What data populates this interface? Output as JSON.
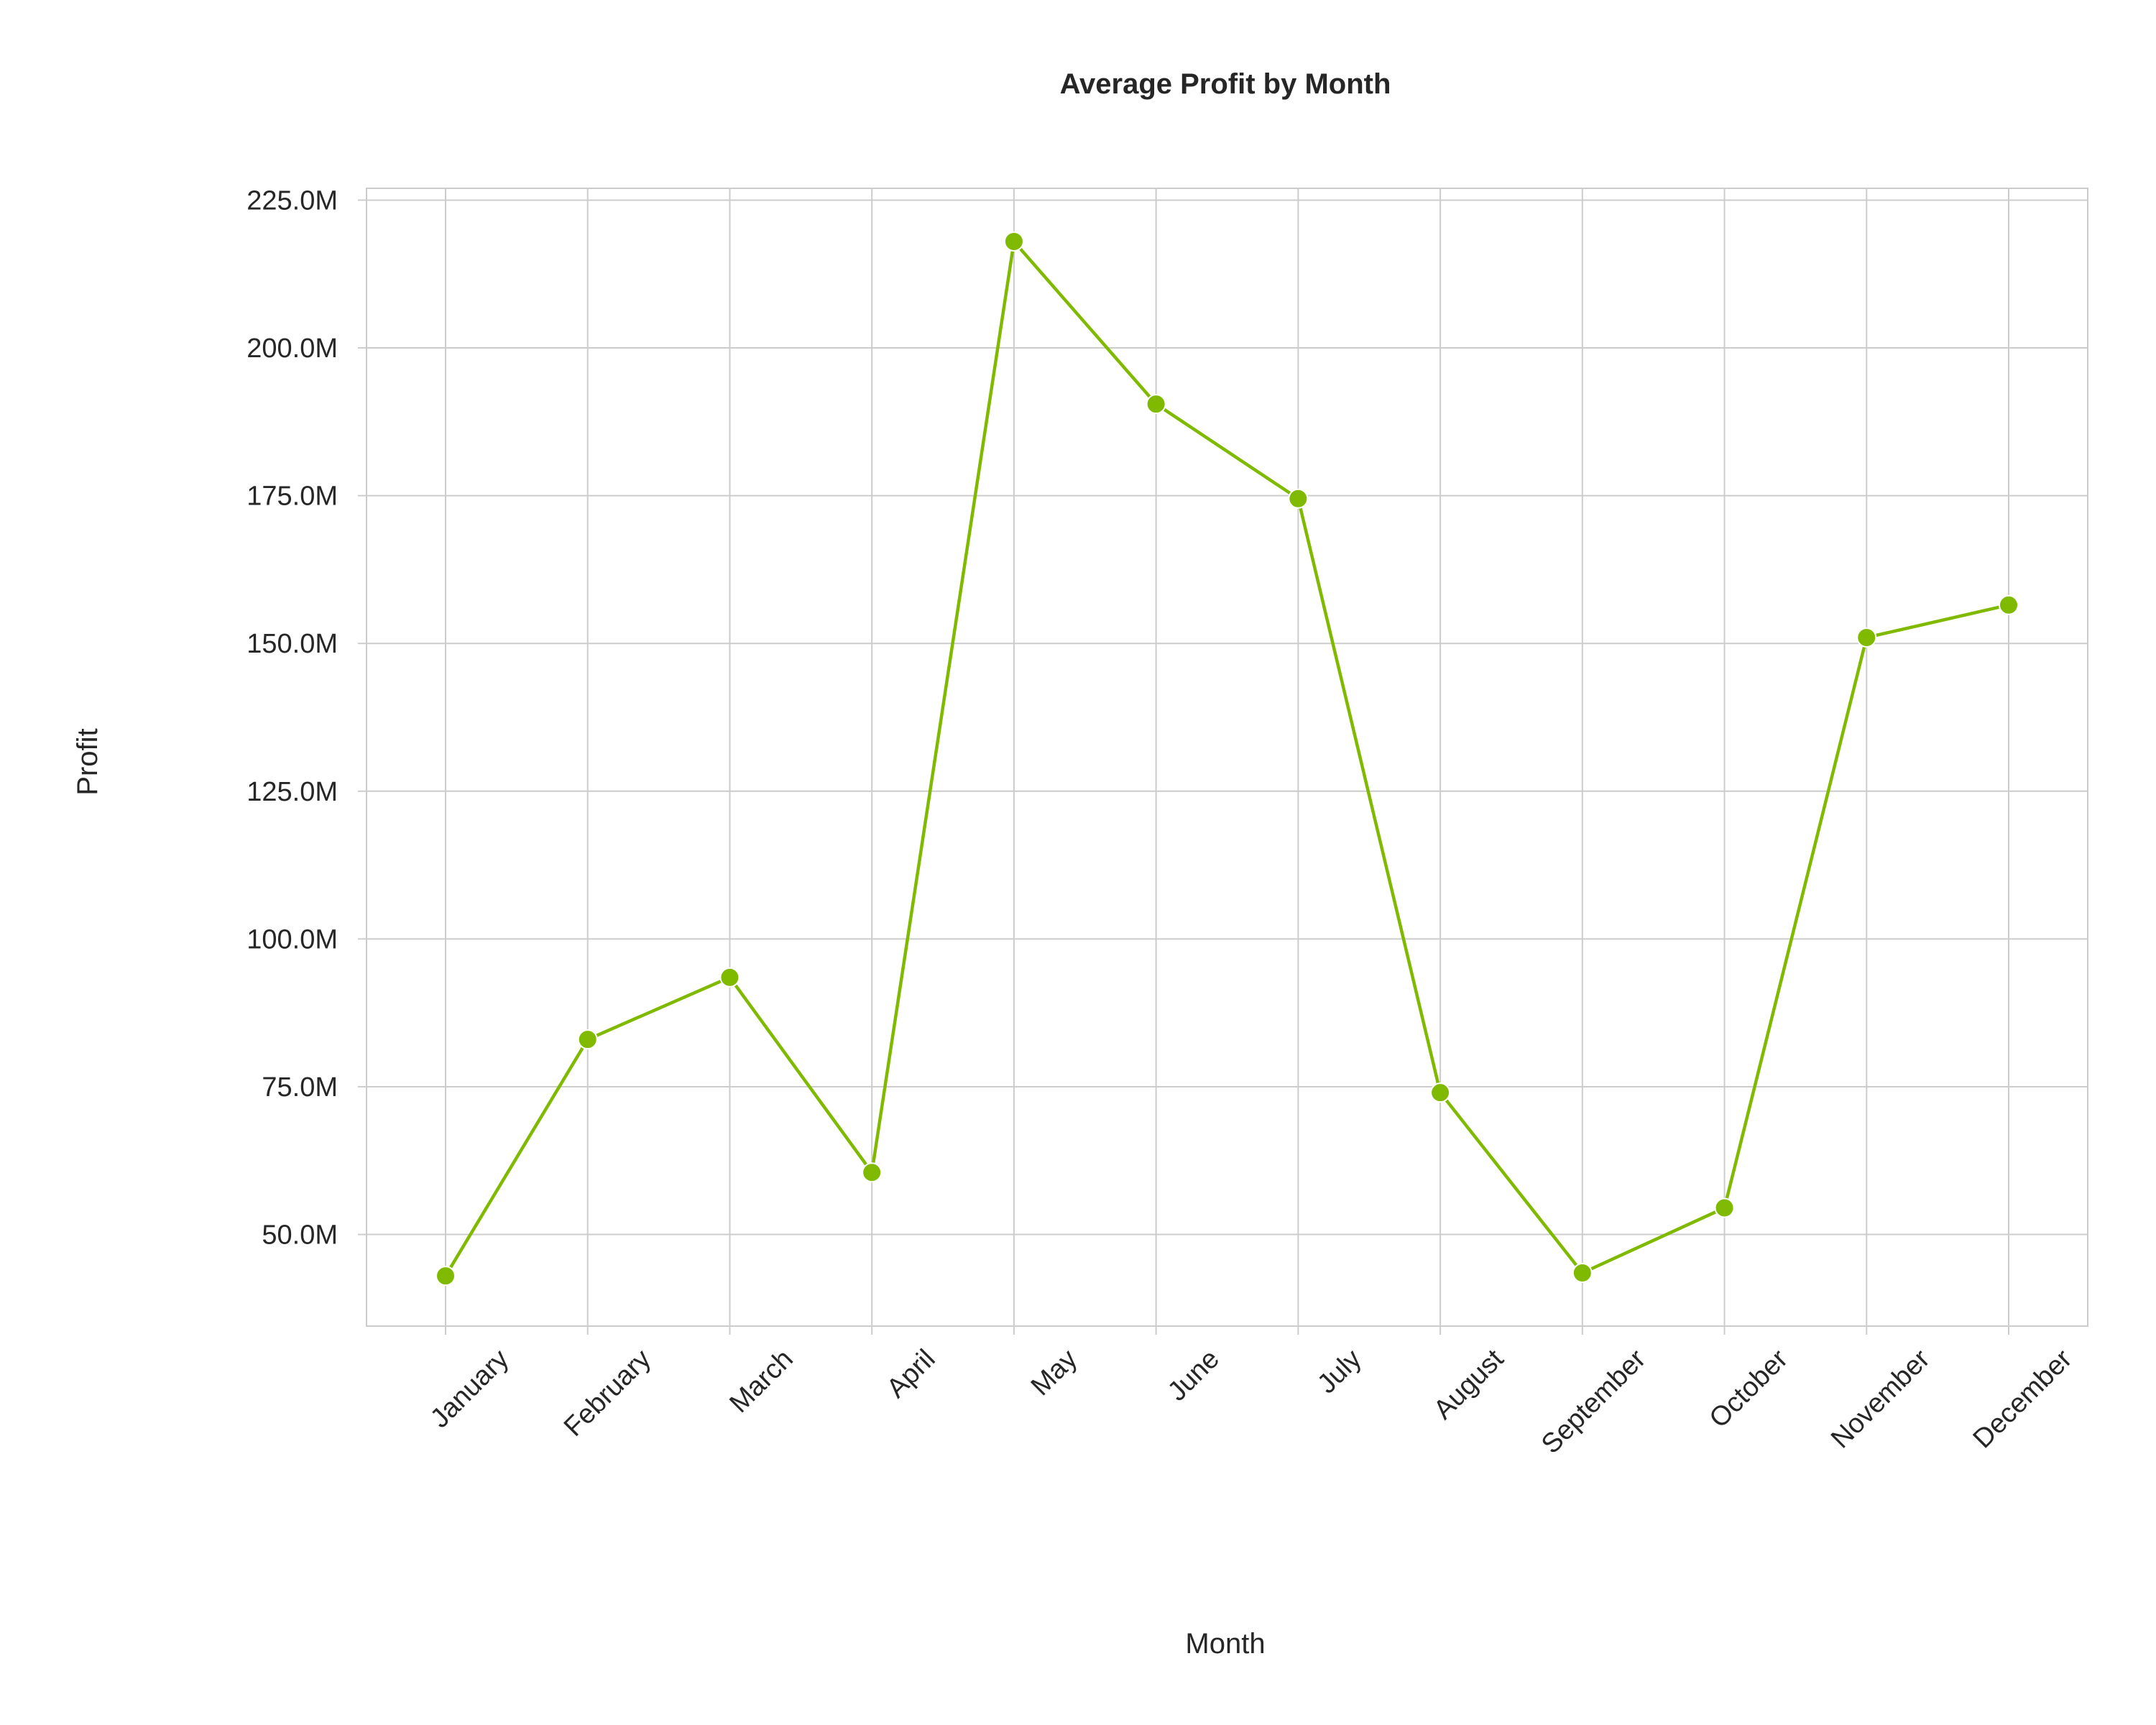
{
  "chart_data": {
    "type": "line",
    "title": "Average Profit by Month",
    "xlabel": "Month",
    "ylabel": "Profit",
    "categories": [
      "January",
      "February",
      "March",
      "April",
      "May",
      "June",
      "July",
      "August",
      "September",
      "October",
      "November",
      "December"
    ],
    "series": [
      {
        "values": [
          43.0,
          83.0,
          93.5,
          60.5,
          218.0,
          190.5,
          174.5,
          74.0,
          43.5,
          54.5,
          151.0,
          156.5
        ],
        "color": "#7fba00"
      }
    ],
    "yticks": [
      50,
      75,
      100,
      125,
      150,
      175,
      200,
      225
    ],
    "ytick_labels": [
      "50.0M",
      "75.0M",
      "100.0M",
      "125.0M",
      "150.0M",
      "175.0M",
      "200.0M",
      "225.0M"
    ],
    "ylim": [
      34.5,
      227
    ],
    "y_unit": "millions",
    "grid": true,
    "legend": false
  }
}
